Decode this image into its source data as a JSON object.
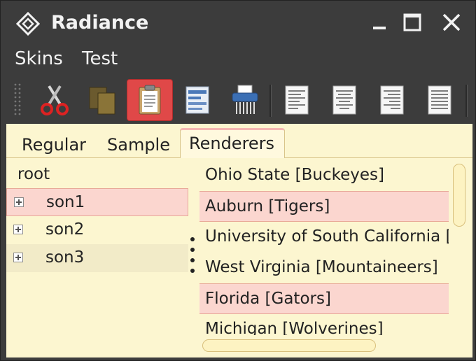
{
  "window": {
    "title": "Radiance",
    "controls": [
      "minimize",
      "maximize",
      "close"
    ]
  },
  "menu": {
    "items": [
      {
        "label": "Skins"
      },
      {
        "label": "Test"
      }
    ]
  },
  "toolbar": {
    "buttons": [
      {
        "name": "cut",
        "icon": "scissors-icon"
      },
      {
        "name": "copy",
        "icon": "copy-icon"
      },
      {
        "name": "paste",
        "icon": "clipboard-icon",
        "selected": true
      },
      {
        "name": "document",
        "icon": "document-icon"
      },
      {
        "name": "shredder",
        "icon": "shredder-icon"
      },
      {
        "name": "align-left",
        "icon": "align-left-icon"
      },
      {
        "name": "align-center",
        "icon": "align-center-icon"
      },
      {
        "name": "align-right",
        "icon": "align-right-icon"
      },
      {
        "name": "justify",
        "icon": "justify-icon"
      }
    ],
    "selected_color": "#e04848"
  },
  "tabs": [
    {
      "label": "Regular"
    },
    {
      "label": "Sample"
    },
    {
      "label": "Renderers",
      "active": true
    }
  ],
  "tree": {
    "root": "root",
    "children": [
      {
        "label": "son1",
        "selected": true
      },
      {
        "label": "son2"
      },
      {
        "label": "son3"
      }
    ]
  },
  "list": {
    "items": [
      {
        "label": "Ohio State [Buckeyes]"
      },
      {
        "label": "Auburn [Tigers]",
        "selected": true
      },
      {
        "label": "University of South California [Trojans]"
      },
      {
        "label": "West Virginia [Mountaineers]"
      },
      {
        "label": "Florida [Gators]",
        "selected": true
      },
      {
        "label": "Michigan [Wolverines]"
      }
    ]
  },
  "colors": {
    "panel_background": "#fcf6d0",
    "selection_background": "#fbd6cf",
    "chrome": "#3c3c3c"
  }
}
